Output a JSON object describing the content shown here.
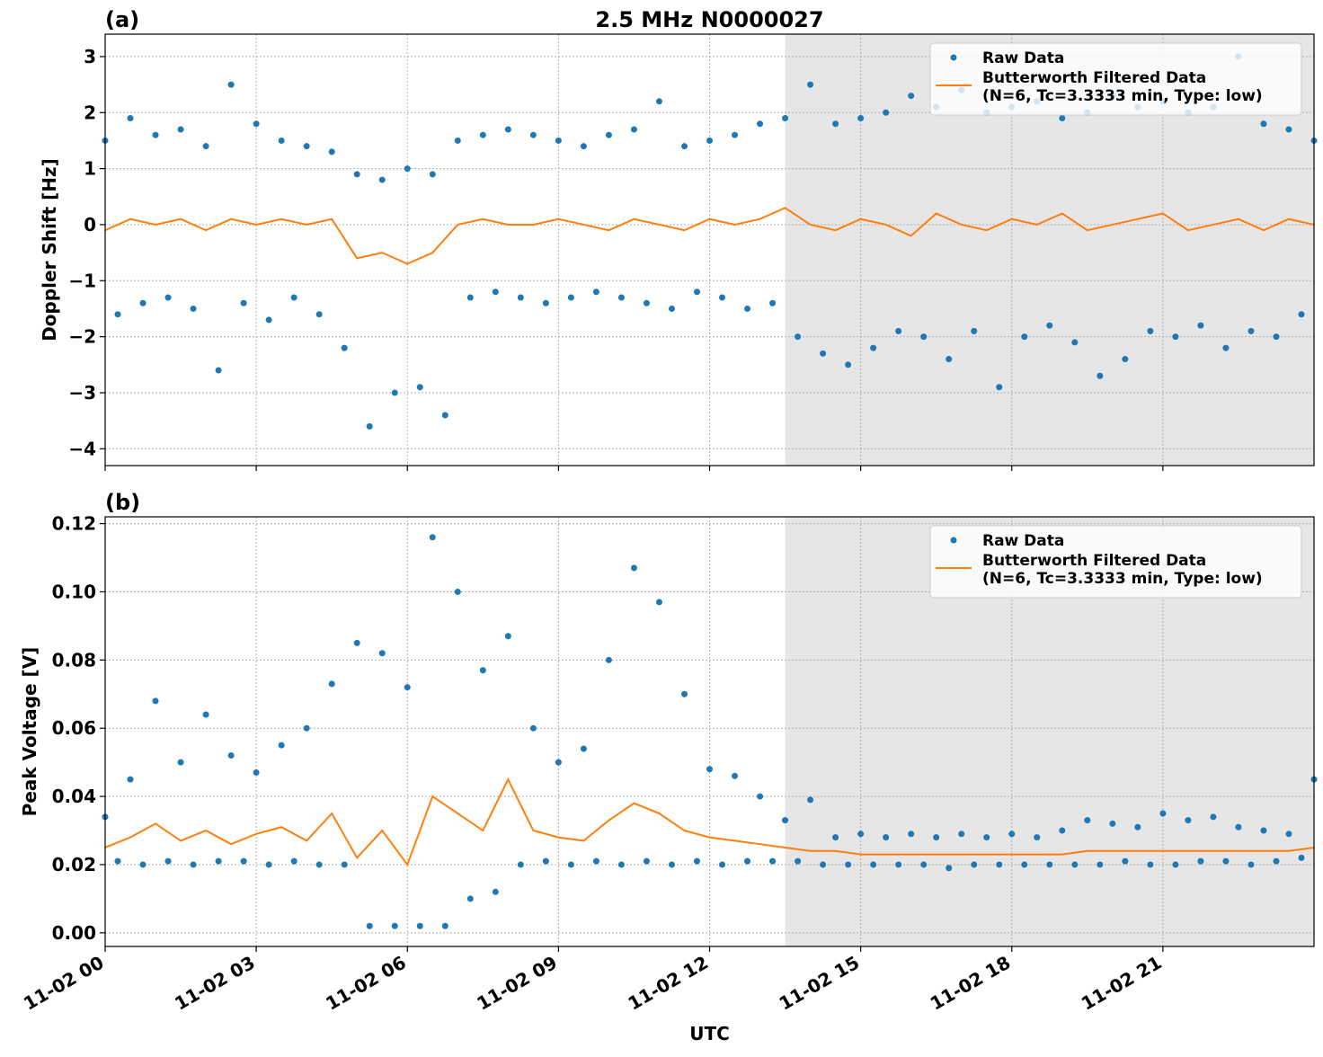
{
  "chart_data": [
    {
      "type": "line",
      "title": "2.5 MHz N0000027",
      "panel_label": "(a)",
      "ylabel": "Doppler Shift [Hz]",
      "xlim": [
        0,
        24
      ],
      "xticks": [
        0,
        3,
        6,
        9,
        12,
        15,
        18,
        21
      ],
      "xtick_labels": false,
      "ylim": [
        -4.3,
        3.4
      ],
      "yticks": [
        {
          "value": -4,
          "label": "−4"
        },
        {
          "value": -3,
          "label": "−3"
        },
        {
          "value": -2,
          "label": "−2"
        },
        {
          "value": -1,
          "label": "−1"
        },
        0,
        1,
        2,
        3
      ],
      "grid": true,
      "shaded_span": [
        13.5,
        24
      ],
      "shade_color": "#e6e6e6",
      "legend": "upper right",
      "series": [
        {
          "name": "Raw Data",
          "mode": "markers",
          "color": "#1f77b4",
          "x": [
            0,
            0.25,
            0.5,
            0.75,
            1,
            1.25,
            1.5,
            1.75,
            2,
            2.25,
            2.5,
            2.75,
            3,
            3.25,
            3.5,
            3.75,
            4,
            4.25,
            4.5,
            4.75,
            5,
            5.25,
            5.5,
            5.75,
            6,
            6.25,
            6.5,
            6.75,
            7,
            7.25,
            7.5,
            7.75,
            8,
            8.25,
            8.5,
            8.75,
            9,
            9.25,
            9.5,
            9.75,
            10,
            10.25,
            10.5,
            10.75,
            11,
            11.25,
            11.5,
            11.75,
            12,
            12.25,
            12.5,
            12.75,
            13,
            13.25,
            13.5,
            13.75,
            14,
            14.25,
            14.5,
            14.75,
            15,
            15.25,
            15.5,
            15.75,
            16,
            16.25,
            16.5,
            16.75,
            17,
            17.25,
            17.5,
            17.75,
            18,
            18.25,
            18.5,
            18.75,
            19,
            19.25,
            19.5,
            19.75,
            20,
            20.25,
            20.5,
            20.75,
            21,
            21.25,
            21.5,
            21.75,
            22,
            22.25,
            22.5,
            22.75,
            23,
            23.25,
            23.5,
            23.75,
            24
          ],
          "values": [
            1.5,
            -1.6,
            1.9,
            -1.4,
            1.6,
            -1.3,
            1.7,
            -1.5,
            1.4,
            -2.6,
            2.5,
            -1.4,
            1.8,
            -1.7,
            1.5,
            -1.3,
            1.4,
            -1.6,
            1.3,
            -2.2,
            0.9,
            -3.6,
            0.8,
            -3.0,
            1.0,
            -2.9,
            0.9,
            -3.4,
            1.5,
            -1.3,
            1.6,
            -1.2,
            1.7,
            -1.3,
            1.6,
            -1.4,
            1.5,
            -1.3,
            1.4,
            -1.2,
            1.6,
            -1.3,
            1.7,
            -1.4,
            2.2,
            -1.5,
            1.4,
            -1.2,
            1.5,
            -1.3,
            1.6,
            -1.5,
            1.8,
            -1.4,
            1.9,
            -2.0,
            2.5,
            -2.3,
            1.8,
            -2.5,
            1.9,
            -2.2,
            2.0,
            -1.9,
            2.3,
            -2.0,
            2.1,
            -2.4,
            2.4,
            -1.9,
            2.0,
            -2.9,
            2.1,
            -2.0,
            2.2,
            -1.8,
            1.9,
            -2.1,
            2.0,
            -2.7,
            2.3,
            -2.4,
            2.1,
            -1.9,
            2.2,
            -2.0,
            2.0,
            -1.8,
            2.1,
            -2.2,
            3.0,
            -1.9,
            1.8,
            -2.0,
            1.7,
            -1.6,
            1.5
          ]
        },
        {
          "name": "Butterworth Filtered Data\n(N=6, Tc=3.3333 min, Type: low)",
          "mode": "line",
          "color": "#ff7f0e",
          "x": [
            0,
            0.5,
            1,
            1.5,
            2,
            2.5,
            3,
            3.5,
            4,
            4.5,
            5,
            5.5,
            6,
            6.5,
            7,
            7.5,
            8,
            8.5,
            9,
            9.5,
            10,
            10.5,
            11,
            11.5,
            12,
            12.5,
            13,
            13.5,
            14,
            14.5,
            15,
            15.5,
            16,
            16.5,
            17,
            17.5,
            18,
            18.5,
            19,
            19.5,
            20,
            20.5,
            21,
            21.5,
            22,
            22.5,
            23,
            23.5,
            24
          ],
          "values": [
            -0.1,
            0.1,
            0.0,
            0.1,
            -0.1,
            0.1,
            0.0,
            0.1,
            0.0,
            0.1,
            -0.6,
            -0.5,
            -0.7,
            -0.5,
            0.0,
            0.1,
            0.0,
            0.0,
            0.1,
            0.0,
            -0.1,
            0.1,
            0.0,
            -0.1,
            0.1,
            0.0,
            0.1,
            0.3,
            0.0,
            -0.1,
            0.1,
            0.0,
            -0.2,
            0.2,
            0.0,
            -0.1,
            0.1,
            0.0,
            0.2,
            -0.1,
            0.0,
            0.1,
            0.2,
            -0.1,
            0.0,
            0.1,
            -0.1,
            0.1,
            0.0
          ]
        }
      ]
    },
    {
      "type": "line",
      "panel_label": "(b)",
      "ylabel": "Peak Voltage [V]",
      "xlabel": "UTC",
      "xlim": [
        0,
        24
      ],
      "xticks": [
        {
          "value": 0,
          "label": "11-02 00"
        },
        {
          "value": 3,
          "label": "11-02 03"
        },
        {
          "value": 6,
          "label": "11-02 06"
        },
        {
          "value": 9,
          "label": "11-02 09"
        },
        {
          "value": 12,
          "label": "11-02 12"
        },
        {
          "value": 15,
          "label": "11-02 15"
        },
        {
          "value": 18,
          "label": "11-02 18"
        },
        {
          "value": 21,
          "label": "11-02 21"
        }
      ],
      "xtick_labels": true,
      "ylim": [
        -0.004,
        0.122
      ],
      "yticks": [
        {
          "value": 0,
          "label": "0.00"
        },
        0.02,
        0.04,
        0.06,
        0.08,
        {
          "value": 0.1,
          "label": "0.10"
        },
        0.12
      ],
      "grid": true,
      "shaded_span": [
        13.5,
        24
      ],
      "shade_color": "#e6e6e6",
      "legend": "upper right",
      "series": [
        {
          "name": "Raw Data",
          "mode": "markers",
          "color": "#1f77b4",
          "x": [
            0,
            0.25,
            0.5,
            0.75,
            1,
            1.25,
            1.5,
            1.75,
            2,
            2.25,
            2.5,
            2.75,
            3,
            3.25,
            3.5,
            3.75,
            4,
            4.25,
            4.5,
            4.75,
            5,
            5.25,
            5.5,
            5.75,
            6,
            6.25,
            6.5,
            6.75,
            7,
            7.25,
            7.5,
            7.75,
            8,
            8.25,
            8.5,
            8.75,
            9,
            9.25,
            9.5,
            9.75,
            10,
            10.25,
            10.5,
            10.75,
            11,
            11.25,
            11.5,
            11.75,
            12,
            12.25,
            12.5,
            12.75,
            13,
            13.25,
            13.5,
            13.75,
            14,
            14.25,
            14.5,
            14.75,
            15,
            15.25,
            15.5,
            15.75,
            16,
            16.25,
            16.5,
            16.75,
            17,
            17.25,
            17.5,
            17.75,
            18,
            18.25,
            18.5,
            18.75,
            19,
            19.25,
            19.5,
            19.75,
            20,
            20.25,
            20.5,
            20.75,
            21,
            21.25,
            21.5,
            21.75,
            22,
            22.25,
            22.5,
            22.75,
            23,
            23.25,
            23.5,
            23.75,
            24
          ],
          "values": [
            0.034,
            0.021,
            0.045,
            0.02,
            0.068,
            0.021,
            0.05,
            0.02,
            0.064,
            0.021,
            0.052,
            0.021,
            0.047,
            0.02,
            0.055,
            0.021,
            0.06,
            0.02,
            0.073,
            0.02,
            0.085,
            0.002,
            0.082,
            0.002,
            0.072,
            0.002,
            0.116,
            0.002,
            0.1,
            0.01,
            0.077,
            0.012,
            0.087,
            0.02,
            0.06,
            0.021,
            0.05,
            0.02,
            0.054,
            0.021,
            0.08,
            0.02,
            0.107,
            0.021,
            0.097,
            0.02,
            0.07,
            0.021,
            0.048,
            0.02,
            0.046,
            0.021,
            0.04,
            0.021,
            0.033,
            0.021,
            0.039,
            0.02,
            0.028,
            0.02,
            0.029,
            0.02,
            0.028,
            0.02,
            0.029,
            0.02,
            0.028,
            0.019,
            0.029,
            0.02,
            0.028,
            0.02,
            0.029,
            0.02,
            0.028,
            0.02,
            0.03,
            0.02,
            0.033,
            0.02,
            0.032,
            0.021,
            0.031,
            0.02,
            0.035,
            0.02,
            0.033,
            0.021,
            0.034,
            0.021,
            0.031,
            0.02,
            0.03,
            0.021,
            0.029,
            0.022,
            0.045
          ]
        },
        {
          "name": "Butterworth Filtered Data\n(N=6, Tc=3.3333 min, Type: low)",
          "mode": "line",
          "color": "#ff7f0e",
          "x": [
            0,
            0.5,
            1,
            1.5,
            2,
            2.5,
            3,
            3.5,
            4,
            4.5,
            5,
            5.5,
            6,
            6.5,
            7,
            7.5,
            8,
            8.5,
            9,
            9.5,
            10,
            10.5,
            11,
            11.5,
            12,
            12.5,
            13,
            13.5,
            14,
            14.5,
            15,
            15.5,
            16,
            16.5,
            17,
            17.5,
            18,
            18.5,
            19,
            19.5,
            20,
            20.5,
            21,
            21.5,
            22,
            22.5,
            23,
            23.5,
            24
          ],
          "values": [
            0.025,
            0.028,
            0.032,
            0.027,
            0.03,
            0.026,
            0.029,
            0.031,
            0.027,
            0.035,
            0.022,
            0.03,
            0.02,
            0.04,
            0.035,
            0.03,
            0.045,
            0.03,
            0.028,
            0.027,
            0.033,
            0.038,
            0.035,
            0.03,
            0.028,
            0.027,
            0.026,
            0.025,
            0.024,
            0.024,
            0.023,
            0.023,
            0.023,
            0.023,
            0.023,
            0.023,
            0.023,
            0.023,
            0.023,
            0.024,
            0.024,
            0.024,
            0.024,
            0.024,
            0.024,
            0.024,
            0.024,
            0.024,
            0.025
          ]
        }
      ]
    }
  ]
}
